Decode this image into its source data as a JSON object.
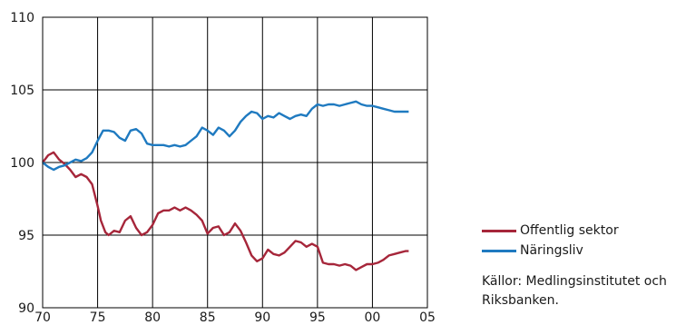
{
  "chart_data": {
    "type": "line",
    "title": "",
    "xlabel": "",
    "ylabel": "",
    "xlim": [
      1970,
      2005
    ],
    "ylim": [
      90,
      110
    ],
    "xticks": [
      "70",
      "75",
      "80",
      "85",
      "90",
      "95",
      "00",
      "05"
    ],
    "yticks": [
      "90",
      "95",
      "100",
      "105",
      "110"
    ],
    "grid": true,
    "legend_position": "right-bottom",
    "series": [
      {
        "name": "Offentlig sektor",
        "color": "#a6263a",
        "x": [
          1970,
          1970.5,
          1971,
          1971.5,
          1972,
          1972.5,
          1973,
          1973.5,
          1974,
          1974.5,
          1975,
          1975.3,
          1975.7,
          1976,
          1976.5,
          1977,
          1977.5,
          1978,
          1978.5,
          1979,
          1979.5,
          1980,
          1980.5,
          1981,
          1981.5,
          1982,
          1982.5,
          1983,
          1983.5,
          1984,
          1984.5,
          1985,
          1985.5,
          1986,
          1986.5,
          1987,
          1987.5,
          1988,
          1988.5,
          1989,
          1989.5,
          1990,
          1990.5,
          1991,
          1991.5,
          1992,
          1992.5,
          1993,
          1993.5,
          1994,
          1994.5,
          1995,
          1995.5,
          1996,
          1996.5,
          1997,
          1997.5,
          1998,
          1998.5,
          1999,
          1999.5,
          2000,
          2000.5,
          2001,
          2001.5,
          2002,
          2002.5,
          2003,
          2003.3
        ],
        "values": [
          100.0,
          100.5,
          100.7,
          100.2,
          99.9,
          99.5,
          99.0,
          99.2,
          99.0,
          98.5,
          97.0,
          96.0,
          95.2,
          95.0,
          95.3,
          95.2,
          96.0,
          96.3,
          95.5,
          95.0,
          95.2,
          95.7,
          96.5,
          96.7,
          96.7,
          96.9,
          96.7,
          96.9,
          96.7,
          96.4,
          96.0,
          95.1,
          95.5,
          95.6,
          95.0,
          95.2,
          95.8,
          95.3,
          94.5,
          93.6,
          93.2,
          93.4,
          94.0,
          93.7,
          93.6,
          93.8,
          94.2,
          94.6,
          94.5,
          94.2,
          94.4,
          94.2,
          93.1,
          93.0,
          93.0,
          92.9,
          93.0,
          92.9,
          92.6,
          92.8,
          93.0,
          93.0,
          93.1,
          93.3,
          93.6,
          93.7,
          93.8,
          93.9,
          93.9
        ]
      },
      {
        "name": "Näringsliv",
        "color": "#1f7ac0",
        "x": [
          1970,
          1970.5,
          1971,
          1971.5,
          1972,
          1972.5,
          1973,
          1973.5,
          1974,
          1974.5,
          1975,
          1975.5,
          1976,
          1976.5,
          1977,
          1977.5,
          1978,
          1978.5,
          1979,
          1979.5,
          1980,
          1980.5,
          1981,
          1981.5,
          1982,
          1982.5,
          1983,
          1983.5,
          1984,
          1984.5,
          1985,
          1985.5,
          1986,
          1986.5,
          1987,
          1987.5,
          1988,
          1988.5,
          1989,
          1989.5,
          1990,
          1990.5,
          1991,
          1991.5,
          1992,
          1992.5,
          1993,
          1993.5,
          1994,
          1994.5,
          1995,
          1995.5,
          1996,
          1996.5,
          1997,
          1997.5,
          1998,
          1998.5,
          1999,
          1999.5,
          2000,
          2000.5,
          2001,
          2001.5,
          2002,
          2002.5,
          2003,
          2003.3
        ],
        "values": [
          100.0,
          99.7,
          99.5,
          99.7,
          99.8,
          100.0,
          100.2,
          100.1,
          100.3,
          100.7,
          101.5,
          102.2,
          102.2,
          102.1,
          101.7,
          101.5,
          102.2,
          102.3,
          102.0,
          101.3,
          101.2,
          101.2,
          101.2,
          101.1,
          101.2,
          101.1,
          101.2,
          101.5,
          101.8,
          102.4,
          102.2,
          101.9,
          102.4,
          102.2,
          101.8,
          102.2,
          102.8,
          103.2,
          103.5,
          103.4,
          103.0,
          103.2,
          103.1,
          103.4,
          103.2,
          103.0,
          103.2,
          103.3,
          103.2,
          103.7,
          104.0,
          103.9,
          104.0,
          104.0,
          103.9,
          104.0,
          104.1,
          104.2,
          104.0,
          103.9,
          103.9,
          103.8,
          103.7,
          103.6,
          103.5,
          103.5,
          103.5,
          103.5
        ]
      }
    ],
    "source": "Källor: Medlingsinstitutet och Riksbanken."
  }
}
